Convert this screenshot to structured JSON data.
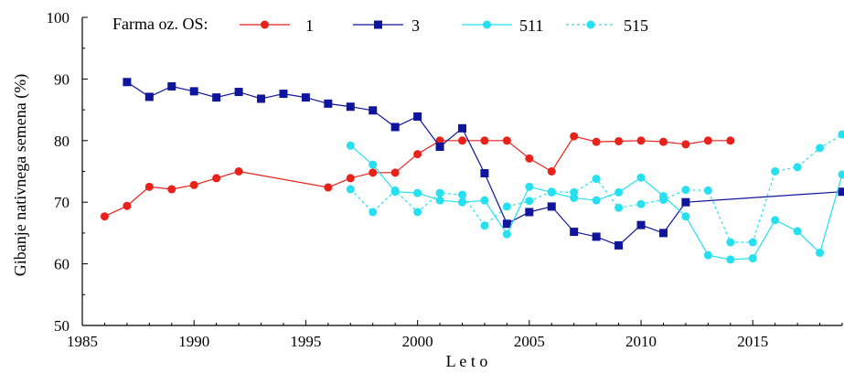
{
  "chart_data": {
    "type": "line",
    "title": "",
    "xlabel": "L e t o",
    "ylabel": "Gibanje nativnega semena (%)",
    "xlim": [
      1985,
      2019
    ],
    "ylim": [
      50,
      100
    ],
    "xticks": [
      1985,
      1990,
      1995,
      2000,
      2005,
      2010,
      2015
    ],
    "yticks": [
      50,
      60,
      70,
      80,
      90,
      100
    ],
    "grid": false,
    "legend": {
      "title": "Farma oz. OS:",
      "placement": "top"
    },
    "series": [
      {
        "name": "1",
        "color": "#e8211b",
        "marker": "circle",
        "line": "solid",
        "x": [
          1986,
          1987,
          1988,
          1989,
          1990,
          1991,
          1992,
          1996,
          1997,
          1998,
          1999,
          2000,
          2001,
          2002,
          2003,
          2004,
          2005,
          2006,
          2007,
          2008,
          2009,
          2010,
          2011,
          2012,
          2013,
          2014
        ],
        "y": [
          67.7,
          69.4,
          72.5,
          72.1,
          72.8,
          73.9,
          75.0,
          72.4,
          73.9,
          74.8,
          74.8,
          77.8,
          80.0,
          80.0,
          80.0,
          80.0,
          77.1,
          75.0,
          80.7,
          79.8,
          79.9,
          80.0,
          79.8,
          79.4,
          80.0,
          80.0
        ]
      },
      {
        "name": "3",
        "color": "#0f159c",
        "marker": "square",
        "line": "solid",
        "x": [
          1987,
          1988,
          1989,
          1990,
          1991,
          1992,
          1993,
          1994,
          1995,
          1996,
          1997,
          1998,
          1999,
          2000,
          2001,
          2002,
          2003,
          2004,
          2005,
          2006,
          2007,
          2008,
          2009,
          2010,
          2011,
          2012,
          2019
        ],
        "y": [
          89.5,
          87.1,
          88.8,
          88.0,
          87.0,
          87.9,
          86.8,
          87.6,
          87.0,
          86.0,
          85.5,
          84.9,
          82.2,
          83.9,
          79.0,
          82.0,
          74.7,
          66.5,
          68.4,
          69.3,
          65.2,
          64.4,
          63.0,
          66.3,
          65.0,
          70.0,
          71.7
        ]
      },
      {
        "name": "511",
        "color": "#26e0f0",
        "marker": "circle",
        "line": "solid",
        "x": [
          1997,
          1998,
          1999,
          2000,
          2001,
          2002,
          2003,
          2004,
          2005,
          2006,
          2007,
          2008,
          2009,
          2010,
          2011,
          2012,
          2013,
          2014,
          2015,
          2016,
          2017,
          2018,
          2019
        ],
        "y": [
          79.2,
          76.1,
          71.7,
          71.5,
          70.3,
          70.0,
          70.3,
          64.8,
          72.5,
          71.6,
          70.7,
          70.3,
          71.6,
          74.0,
          71.0,
          67.7,
          61.4,
          60.7,
          60.9,
          67.1,
          65.3,
          61.8,
          74.5
        ]
      },
      {
        "name": "515",
        "color": "#26e0f0",
        "marker": "circle",
        "line": "dashed",
        "x": [
          1997,
          1998,
          1999,
          2000,
          2001,
          2002,
          2003,
          2004,
          2005,
          2006,
          2007,
          2008,
          2009,
          2010,
          2011,
          2012,
          2013,
          2014,
          2015,
          2016,
          2017,
          2018,
          2019
        ],
        "y": [
          72.1,
          68.4,
          71.9,
          68.4,
          71.5,
          71.2,
          66.2,
          69.3,
          70.2,
          71.7,
          71.6,
          73.8,
          69.1,
          69.7,
          70.4,
          72.0,
          71.9,
          63.5,
          63.5,
          75.0,
          75.7,
          78.8,
          81.0
        ]
      }
    ]
  }
}
